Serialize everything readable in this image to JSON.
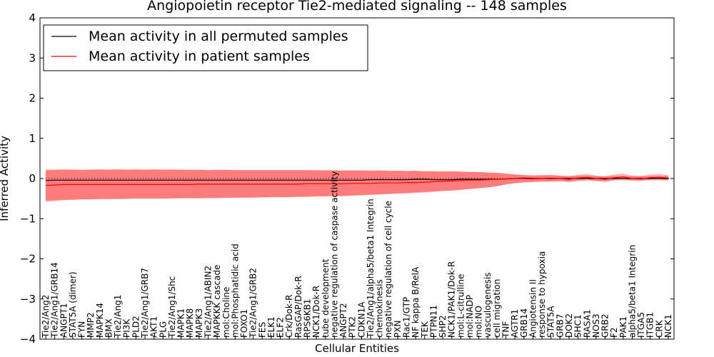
{
  "chart_data": {
    "type": "line",
    "title": "Angiopoietin receptor Tie2-mediated signaling -- 148 samples",
    "xlabel": "Cellular Entities",
    "ylabel": "Inferred Activity",
    "ylim": [
      -4,
      4
    ],
    "yticks": [
      "4",
      "3",
      "2",
      "1",
      "0",
      "−1",
      "−2",
      "−3",
      "−4"
    ],
    "zero_line": "dotted",
    "legend_position": "top-left",
    "categories": [
      "Tie2/Ang2",
      "Tie2/Ang1/GRB14",
      "ANGPT1",
      "STAT5A (dimer)",
      "FYN",
      "MMP2",
      "MAPK14",
      "BMX",
      "Tie2/Ang1",
      "PI3K",
      "PLD2",
      "Tie2/Ang1/GRB7",
      "AKT1",
      "PLG",
      "Tie2/Ang1/Shc",
      "MAPK1",
      "MAPK8",
      "MAPK3",
      "Tie2/Ang1/ABIN2",
      "MAPKKK cascade",
      "mol:Choline",
      "mol:Phosphatidic acid",
      "FOXO1",
      "Tie2/Ang1/GRB2",
      "FES",
      "ELK1",
      "ELF2",
      "Crk/Dok-R",
      "RasGAP/Dok-R",
      "RPS6KB1",
      "NCK1/Dok-R",
      "tube development",
      "negative regulation of caspase activity",
      "ANGPT2",
      "PTK2",
      "CDKN1A",
      "Tie2/Ang1/alpha5/beta1 Integrin",
      "chemokinesis",
      "negative regulation of cell cycle",
      "PXN",
      "Rac1/GTP",
      "NF kappa B/RelA",
      "TEK",
      "PTPN11",
      "SHP2",
      "NCK1/PAK1/Dok-R",
      "mol:L-citrulline",
      "mol:NADP",
      "mol:NO",
      "vasculogenesis",
      "cell migration",
      "TNF",
      "AGTR1",
      "GRB14",
      "Angiotensin II",
      "response to hypoxia",
      "STAT5A",
      "GRB7",
      "DOK2",
      "SHC1",
      "RASA1",
      "NOS3",
      "GRB2",
      "F2",
      "PAK1",
      "alpha5/beta1 Integrin",
      "ITGA5",
      "ITGB1",
      "CRK",
      "NCK1"
    ],
    "series": [
      {
        "name": "Mean activity in all permuted samples",
        "color": "#000000",
        "values": [
          -0.05,
          -0.04,
          -0.04,
          -0.04,
          -0.04,
          -0.04,
          -0.04,
          -0.04,
          -0.04,
          -0.04,
          -0.04,
          -0.04,
          -0.04,
          -0.04,
          -0.04,
          -0.04,
          -0.04,
          -0.04,
          -0.04,
          -0.04,
          -0.04,
          -0.04,
          -0.04,
          -0.04,
          -0.04,
          -0.04,
          -0.04,
          -0.04,
          -0.04,
          -0.04,
          -0.04,
          -0.04,
          -0.04,
          -0.04,
          -0.04,
          -0.04,
          -0.03,
          -0.03,
          -0.03,
          -0.03,
          -0.03,
          -0.02,
          -0.02,
          -0.03,
          -0.03,
          -0.03,
          -0.02,
          -0.02,
          -0.02,
          -0.02,
          -0.02,
          -0.01,
          0.0,
          0.01,
          0.0,
          0.0,
          0.0,
          0.0,
          0.0,
          0.0,
          0.0,
          0.0,
          0.0,
          0.0,
          0.0,
          0.0,
          0.0,
          0.0,
          0.0,
          0.0
        ],
        "lower": [
          -0.58,
          -0.56,
          -0.54,
          -0.53,
          -0.52,
          -0.52,
          -0.51,
          -0.51,
          -0.51,
          -0.5,
          -0.5,
          -0.5,
          -0.5,
          -0.5,
          -0.49,
          -0.49,
          -0.49,
          -0.49,
          -0.48,
          -0.48,
          -0.48,
          -0.48,
          -0.47,
          -0.47,
          -0.47,
          -0.46,
          -0.46,
          -0.46,
          -0.45,
          -0.45,
          -0.44,
          -0.44,
          -0.43,
          -0.43,
          -0.42,
          -0.41,
          -0.4,
          -0.39,
          -0.38,
          -0.37,
          -0.36,
          -0.34,
          -0.33,
          -0.32,
          -0.31,
          -0.3,
          -0.28,
          -0.26,
          -0.24,
          -0.22,
          -0.19,
          -0.15,
          -0.12,
          -0.1,
          -0.09,
          -0.09,
          -0.08,
          -0.08,
          -0.07,
          -0.07,
          -0.06,
          -0.06,
          -0.06,
          -0.05,
          -0.05,
          -0.05,
          -0.05,
          -0.05,
          -0.05,
          -0.05
        ],
        "upper": [
          0.2,
          0.21,
          0.22,
          0.22,
          0.22,
          0.22,
          0.22,
          0.22,
          0.22,
          0.22,
          0.22,
          0.22,
          0.22,
          0.22,
          0.22,
          0.22,
          0.21,
          0.21,
          0.21,
          0.21,
          0.21,
          0.21,
          0.21,
          0.21,
          0.21,
          0.21,
          0.21,
          0.21,
          0.21,
          0.21,
          0.21,
          0.2,
          0.2,
          0.2,
          0.2,
          0.2,
          0.2,
          0.2,
          0.19,
          0.19,
          0.19,
          0.19,
          0.18,
          0.18,
          0.18,
          0.18,
          0.17,
          0.17,
          0.16,
          0.15,
          0.14,
          0.12,
          0.1,
          0.09,
          0.08,
          0.08,
          0.08,
          0.07,
          0.07,
          0.07,
          0.07,
          0.06,
          0.06,
          0.06,
          0.06,
          0.06,
          0.06,
          0.06,
          0.06,
          0.06
        ]
      },
      {
        "name": "Mean activity in patient samples",
        "color": "#ff0000",
        "values": [
          -0.17,
          -0.16,
          -0.15,
          -0.15,
          -0.15,
          -0.15,
          -0.15,
          -0.15,
          -0.15,
          -0.15,
          -0.15,
          -0.15,
          -0.15,
          -0.15,
          -0.15,
          -0.15,
          -0.15,
          -0.14,
          -0.14,
          -0.14,
          -0.14,
          -0.14,
          -0.14,
          -0.14,
          -0.14,
          -0.14,
          -0.14,
          -0.14,
          -0.14,
          -0.13,
          -0.13,
          -0.13,
          -0.13,
          -0.13,
          -0.12,
          -0.12,
          -0.12,
          -0.11,
          -0.11,
          -0.11,
          -0.1,
          -0.1,
          -0.09,
          -0.08,
          -0.07,
          -0.06,
          -0.05,
          -0.04,
          -0.04,
          -0.03,
          -0.02,
          -0.01,
          0.0,
          0.0,
          -0.01,
          0.0,
          0.01,
          0.0,
          -0.02,
          0.01,
          0.03,
          0.0,
          -0.02,
          0.02,
          0.04,
          0.0,
          -0.01,
          0.02,
          0.03,
          0.01
        ],
        "lower": [
          -0.55,
          -0.54,
          -0.53,
          -0.53,
          -0.52,
          -0.52,
          -0.51,
          -0.51,
          -0.51,
          -0.51,
          -0.5,
          -0.5,
          -0.5,
          -0.5,
          -0.5,
          -0.49,
          -0.49,
          -0.49,
          -0.49,
          -0.49,
          -0.48,
          -0.48,
          -0.48,
          -0.48,
          -0.47,
          -0.47,
          -0.47,
          -0.47,
          -0.46,
          -0.46,
          -0.45,
          -0.45,
          -0.44,
          -0.44,
          -0.43,
          -0.42,
          -0.41,
          -0.4,
          -0.39,
          -0.38,
          -0.37,
          -0.36,
          -0.35,
          -0.33,
          -0.31,
          -0.3,
          -0.28,
          -0.26,
          -0.24,
          -0.22,
          -0.19,
          -0.15,
          -0.11,
          -0.09,
          -0.08,
          -0.06,
          -0.07,
          -0.05,
          -0.1,
          -0.04,
          -0.02,
          -0.06,
          -0.09,
          -0.03,
          -0.01,
          -0.05,
          -0.06,
          -0.02,
          -0.01,
          -0.04
        ],
        "upper": [
          0.23,
          0.22,
          0.23,
          0.22,
          0.21,
          0.22,
          0.23,
          0.22,
          0.23,
          0.22,
          0.23,
          0.22,
          0.23,
          0.22,
          0.22,
          0.22,
          0.22,
          0.22,
          0.21,
          0.22,
          0.22,
          0.21,
          0.21,
          0.21,
          0.21,
          0.21,
          0.21,
          0.21,
          0.21,
          0.21,
          0.2,
          0.21,
          0.2,
          0.2,
          0.2,
          0.2,
          0.19,
          0.2,
          0.19,
          0.19,
          0.18,
          0.19,
          0.18,
          0.18,
          0.17,
          0.18,
          0.17,
          0.16,
          0.16,
          0.15,
          0.14,
          0.12,
          0.1,
          0.08,
          0.07,
          0.08,
          0.09,
          0.07,
          0.05,
          0.09,
          0.11,
          0.07,
          0.05,
          0.1,
          0.12,
          0.07,
          0.06,
          0.1,
          0.11,
          0.08
        ]
      }
    ]
  }
}
